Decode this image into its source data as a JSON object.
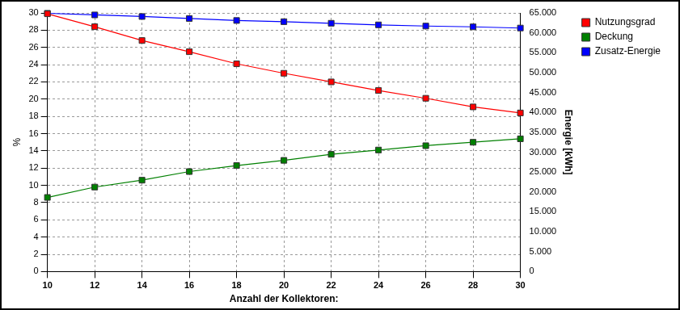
{
  "chart_data": {
    "type": "line",
    "x_label": "Anzahl der Kollektoren:",
    "y_label": "%",
    "y2_label": "Energie [kWh]",
    "x": [
      10,
      12,
      14,
      16,
      18,
      20,
      22,
      24,
      26,
      28,
      30
    ],
    "xlim": [
      10,
      30
    ],
    "xticks": [
      10,
      12,
      14,
      16,
      18,
      20,
      22,
      24,
      26,
      28,
      30
    ],
    "ylim": [
      0,
      30
    ],
    "yticks": [
      0,
      2,
      4,
      6,
      8,
      10,
      12,
      14,
      16,
      18,
      20,
      22,
      24,
      26,
      28,
      30
    ],
    "y2lim": [
      0,
      65000
    ],
    "y2ticks": [
      0,
      {
        "value": 5000,
        "label": "5.000"
      },
      {
        "value": 10000,
        "label": "10.000"
      },
      {
        "value": 15000,
        "label": "15.000"
      },
      {
        "value": 20000,
        "label": "20.000"
      },
      {
        "value": 25000,
        "label": "25.000"
      },
      {
        "value": 30000,
        "label": "30.000"
      },
      {
        "value": 35000,
        "label": "35.000"
      },
      {
        "value": 40000,
        "label": "40.000"
      },
      {
        "value": 45000,
        "label": "45.000"
      },
      {
        "value": 50000,
        "label": "50.000"
      },
      {
        "value": 55000,
        "label": "55.000"
      },
      {
        "value": 60000,
        "label": "60.000"
      },
      {
        "value": 65000,
        "label": "65.000"
      }
    ],
    "grid": true,
    "legend": "right",
    "series": [
      {
        "name": "Nutzungsgrad",
        "color": "#ff0000",
        "marker": "square",
        "values": [
          29.9,
          28.4,
          26.8,
          25.5,
          24.1,
          23.0,
          22.0,
          21.0,
          20.1,
          19.1,
          18.4
        ]
      },
      {
        "name": "Deckung",
        "color": "#008000",
        "marker": "square",
        "values": [
          8.6,
          9.8,
          10.6,
          11.6,
          12.3,
          12.9,
          13.6,
          14.1,
          14.6,
          15.0,
          15.4
        ]
      },
      {
        "name": "Zusatz-Energie",
        "color": "#0000ff",
        "marker": "square",
        "axis": "y2",
        "values": [
          64900,
          64500,
          64100,
          63600,
          63100,
          62800,
          62400,
          62000,
          61700,
          61500,
          61200
        ]
      }
    ]
  }
}
